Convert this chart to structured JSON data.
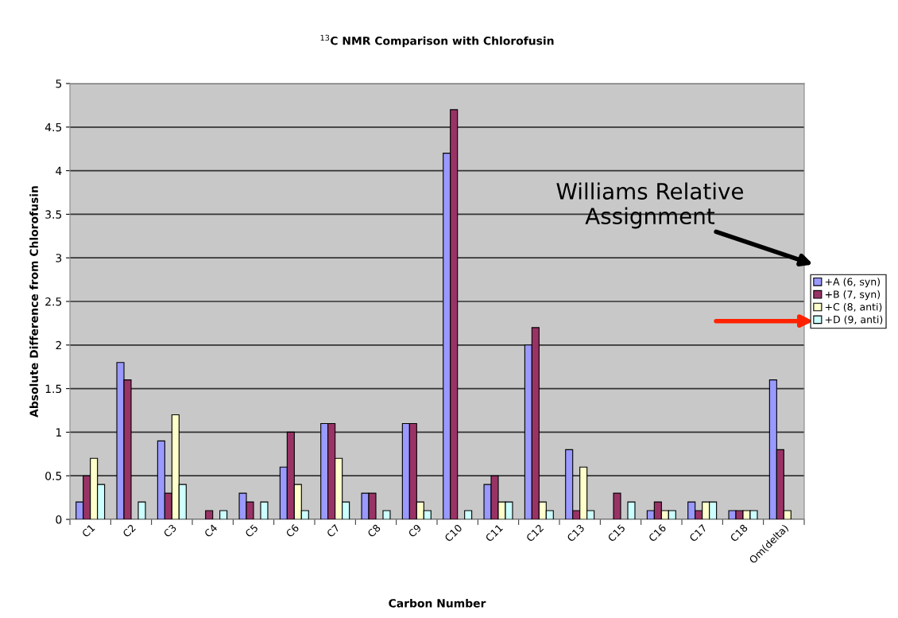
{
  "chart_data": {
    "type": "bar",
    "title": "$^{13}$C NMR Comparison with Chlorofusin",
    "xlabel": "Carbon Number",
    "ylabel": "Absolute Difference from Chlorofusin",
    "categories": [
      "C1",
      "C2",
      "C3",
      "C4",
      "C5",
      "C6",
      "C7",
      "C8",
      "C9",
      "C10",
      "C11",
      "C12",
      "C13",
      "C15",
      "C16",
      "C17",
      "C18",
      "Om(delta)"
    ],
    "series": [
      {
        "name": "+A (6, syn)",
        "color": "#9999ff",
        "values": [
          0.2,
          1.8,
          0.9,
          null,
          0.3,
          0.6,
          1.1,
          0.3,
          1.1,
          4.2,
          0.4,
          2.0,
          0.8,
          null,
          0.1,
          0.2,
          0.1,
          1.6
        ]
      },
      {
        "name": "+B (7, syn)",
        "color": "#993366",
        "values": [
          0.5,
          1.6,
          0.3,
          0.1,
          0.2,
          1.0,
          1.1,
          0.3,
          1.1,
          4.7,
          0.5,
          2.2,
          0.1,
          0.3,
          0.2,
          0.1,
          0.1,
          0.8
        ]
      },
      {
        "name": "+C (8, anti)",
        "color": "#ffffcc",
        "values": [
          0.7,
          null,
          1.2,
          null,
          null,
          0.4,
          0.7,
          null,
          0.2,
          null,
          0.2,
          0.2,
          0.6,
          null,
          0.1,
          0.2,
          0.1,
          0.1
        ]
      },
      {
        "name": "+D (9, anti)",
        "color": "#ccffff",
        "values": [
          0.4,
          0.2,
          0.4,
          0.1,
          0.2,
          0.1,
          0.2,
          0.1,
          0.1,
          0.1,
          0.2,
          0.1,
          0.1,
          0.2,
          0.1,
          0.2,
          0.1,
          null
        ]
      }
    ],
    "ylim": [
      0,
      5
    ],
    "yticks": [
      0,
      0.5,
      1,
      1.5,
      2,
      2.5,
      3,
      3.5,
      4,
      4.5,
      5
    ],
    "grid": "y",
    "legend": "right",
    "annotations": [
      "Williams Relative\nAssignment"
    ]
  }
}
